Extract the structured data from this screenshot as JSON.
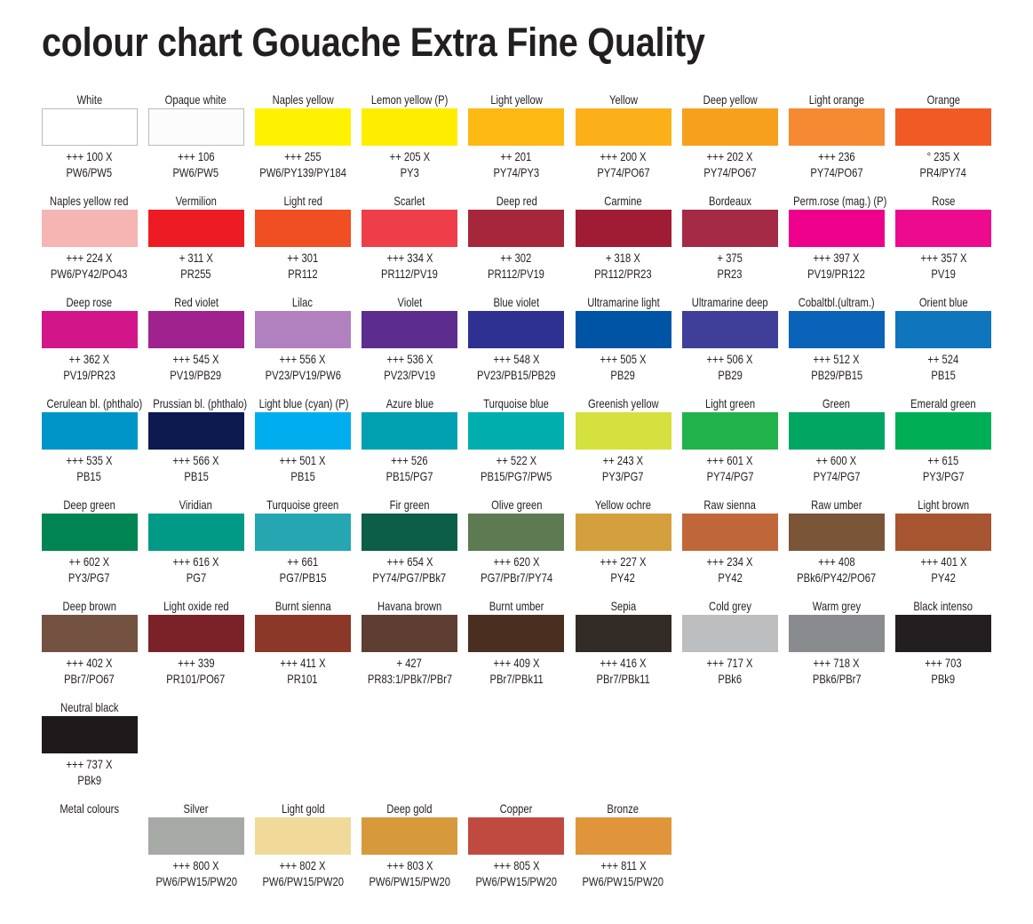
{
  "title": "colour chart Gouache Extra Fine Quality",
  "rows": [
    [
      {
        "name": "White",
        "code": "+++ 100 X",
        "pigment": "PW6/PW5",
        "color": "#ffffff"
      },
      {
        "name": "Opaque white",
        "code": "+++ 106",
        "pigment": "PW6/PW5",
        "color": "#fcfcfc"
      },
      {
        "name": "Naples yellow",
        "code": "+++ 255",
        "pigment": "PW6/PY139/PY184",
        "color": "#fff200"
      },
      {
        "name": "Lemon yellow (P)",
        "code": "++ 205 X",
        "pigment": "PY3",
        "color": "#ffed00"
      },
      {
        "name": "Light yellow",
        "code": "++ 201",
        "pigment": "PY74/PY3",
        "color": "#fdb913"
      },
      {
        "name": "Yellow",
        "code": "+++ 200 X",
        "pigment": "PY74/PO67",
        "color": "#fbb01a"
      },
      {
        "name": "Deep yellow",
        "code": "+++ 202 X",
        "pigment": "PY74/PO67",
        "color": "#f7a01d"
      },
      {
        "name": "Light orange",
        "code": "+++ 236",
        "pigment": "PY74/PO67",
        "color": "#f58a33"
      },
      {
        "name": "Orange",
        "code": "° 235 X",
        "pigment": "PR4/PY74",
        "color": "#f15a24"
      }
    ],
    [
      {
        "name": "Naples yellow red",
        "code": "+++ 224 X",
        "pigment": "PW6/PY42/PO43",
        "color": "#f5b5b3"
      },
      {
        "name": "Vermilion",
        "code": "+ 311 X",
        "pigment": "PR255",
        "color": "#ed1c24"
      },
      {
        "name": "Light red",
        "code": "++ 301",
        "pigment": "PR112",
        "color": "#f04e23"
      },
      {
        "name": "Scarlet",
        "code": "+++ 334 X",
        "pigment": "PR112/PV19",
        "color": "#ee3e4a"
      },
      {
        "name": "Deep red",
        "code": "++ 302",
        "pigment": "PR112/PV19",
        "color": "#a6273c"
      },
      {
        "name": "Carmine",
        "code": "+ 318 X",
        "pigment": "PR112/PR23",
        "color": "#a01c35"
      },
      {
        "name": "Bordeaux",
        "code": "+ 375",
        "pigment": "PR23",
        "color": "#a52a45"
      },
      {
        "name": "Perm.rose (mag.) (P)",
        "code": "+++ 397 X",
        "pigment": "PV19/PR122",
        "color": "#ec008c"
      },
      {
        "name": "Rose",
        "code": "+++ 357 X",
        "pigment": "PV19",
        "color": "#ec0a8e"
      }
    ],
    [
      {
        "name": "Deep rose",
        "code": "++ 362 X",
        "pigment": "PV19/PR23",
        "color": "#d2168a"
      },
      {
        "name": "Red violet",
        "code": "+++ 545 X",
        "pigment": "PV19/PB29",
        "color": "#a0228f"
      },
      {
        "name": "Lilac",
        "code": "+++ 556 X",
        "pigment": "PV23/PV19/PW6",
        "color": "#b081be"
      },
      {
        "name": "Violet",
        "code": "+++ 536 X",
        "pigment": "PV23/PV19",
        "color": "#5c2d8e"
      },
      {
        "name": "Blue violet",
        "code": "+++ 548 X",
        "pigment": "PV23/PB15/PB29",
        "color": "#2e3192"
      },
      {
        "name": "Ultramarine light",
        "code": "+++ 505 X",
        "pigment": "PB29",
        "color": "#0054a6"
      },
      {
        "name": "Ultramarine deep",
        "code": "+++ 506 X",
        "pigment": "PB29",
        "color": "#3f3f9a"
      },
      {
        "name": "Cobaltbl.(ultram.)",
        "code": "+++ 512 X",
        "pigment": "PB29/PB15",
        "color": "#0a63b8"
      },
      {
        "name": "Orient blue",
        "code": "++ 524",
        "pigment": "PB15",
        "color": "#0f75bc"
      }
    ],
    [
      {
        "name": "Cerulean bl. (phthalo)",
        "code": "+++ 535 X",
        "pigment": "PB15",
        "color": "#0095c8"
      },
      {
        "name": "Prussian bl. (phthalo)",
        "code": "+++ 566 X",
        "pigment": "PB15",
        "color": "#0d1a4f"
      },
      {
        "name": "Light blue (cyan) (P)",
        "code": "+++ 501 X",
        "pigment": "PB15",
        "color": "#00aeef"
      },
      {
        "name": "Azure blue",
        "code": "+++ 526",
        "pigment": "PB15/PG7",
        "color": "#00a0b0"
      },
      {
        "name": "Turquoise blue",
        "code": "++ 522 X",
        "pigment": "PB15/PG7/PW5",
        "color": "#00aeae"
      },
      {
        "name": "Greenish yellow",
        "code": "++ 243 X",
        "pigment": "PY3/PG7",
        "color": "#d4e13f"
      },
      {
        "name": "Light green",
        "code": "+++ 601 X",
        "pigment": "PY74/PG7",
        "color": "#22b24c"
      },
      {
        "name": "Green",
        "code": "++ 600 X",
        "pigment": "PY74/PG7",
        "color": "#00a661"
      },
      {
        "name": "Emerald green",
        "code": "++ 615",
        "pigment": "PY3/PG7",
        "color": "#00ae56"
      }
    ],
    [
      {
        "name": "Deep green",
        "code": "++ 602 X",
        "pigment": "PY3/PG7",
        "color": "#008552"
      },
      {
        "name": "Viridian",
        "code": "+++ 616 X",
        "pigment": "PG7",
        "color": "#009a86"
      },
      {
        "name": "Turquoise green",
        "code": "++ 661",
        "pigment": "PG7/PB15",
        "color": "#25a6b0"
      },
      {
        "name": "Fir green",
        "code": "+++ 654 X",
        "pigment": "PY74/PG7/PBk7",
        "color": "#0d5e48"
      },
      {
        "name": "Olive green",
        "code": "+++ 620 X",
        "pigment": "PG7/PBr7/PY74",
        "color": "#5d7a52"
      },
      {
        "name": "Yellow ochre",
        "code": "+++ 227 X",
        "pigment": "PY42",
        "color": "#d4a03e"
      },
      {
        "name": "Raw sienna",
        "code": "+++ 234 X",
        "pigment": "PY42",
        "color": "#c0673a"
      },
      {
        "name": "Raw umber",
        "code": "+++ 408",
        "pigment": "PBk6/PY42/PO67",
        "color": "#7a5538"
      },
      {
        "name": "Light brown",
        "code": "+++ 401 X",
        "pigment": "PY42",
        "color": "#a75430"
      }
    ],
    [
      {
        "name": "Deep brown",
        "code": "+++ 402 X",
        "pigment": "PBr7/PO67",
        "color": "#745241"
      },
      {
        "name": "Light oxide red",
        "code": "+++ 339",
        "pigment": "PR101/PO67",
        "color": "#7a2228"
      },
      {
        "name": "Burnt sienna",
        "code": "+++ 411 X",
        "pigment": "PR101",
        "color": "#8c3828"
      },
      {
        "name": "Havana brown",
        "code": "+ 427",
        "pigment": "PR83:1/PBk7/PBr7",
        "color": "#5e3d33"
      },
      {
        "name": "Burnt umber",
        "code": "+++ 409 X",
        "pigment": "PBr7/PBk11",
        "color": "#4a2f21"
      },
      {
        "name": "Sepia",
        "code": "+++ 416 X",
        "pigment": "PBr7/PBk11",
        "color": "#332b25"
      },
      {
        "name": "Cold grey",
        "code": "+++ 717 X",
        "pigment": "PBk6",
        "color": "#bdbec0"
      },
      {
        "name": "Warm grey",
        "code": "+++ 718 X",
        "pigment": "PBk6/PBr7",
        "color": "#8a8b8e"
      },
      {
        "name": "Black intenso",
        "code": "+++ 703",
        "pigment": "PBk9",
        "color": "#231f20"
      }
    ],
    [
      {
        "name": "Neutral black",
        "code": "+++ 737 X",
        "pigment": "PBk9",
        "color": "#1e1a1b"
      }
    ]
  ],
  "metal": {
    "label": "Metal colours",
    "swatches": [
      {
        "name": "Silver",
        "code": "+++ 800 X",
        "pigment": "PW6/PW15/PW20",
        "color": "#a7a9a6"
      },
      {
        "name": "Light gold",
        "code": "+++ 802 X",
        "pigment": "PW6/PW15/PW20",
        "color": "#f1d99a"
      },
      {
        "name": "Deep gold",
        "code": "+++ 803 X",
        "pigment": "PW6/PW15/PW20",
        "color": "#d69a3c"
      },
      {
        "name": "Copper",
        "code": "+++ 805 X",
        "pigment": "PW6/PW15/PW20",
        "color": "#c04a40"
      },
      {
        "name": "Bronze",
        "code": "+++ 811 X",
        "pigment": "PW6/PW15/PW20",
        "color": "#e0953a"
      }
    ]
  }
}
